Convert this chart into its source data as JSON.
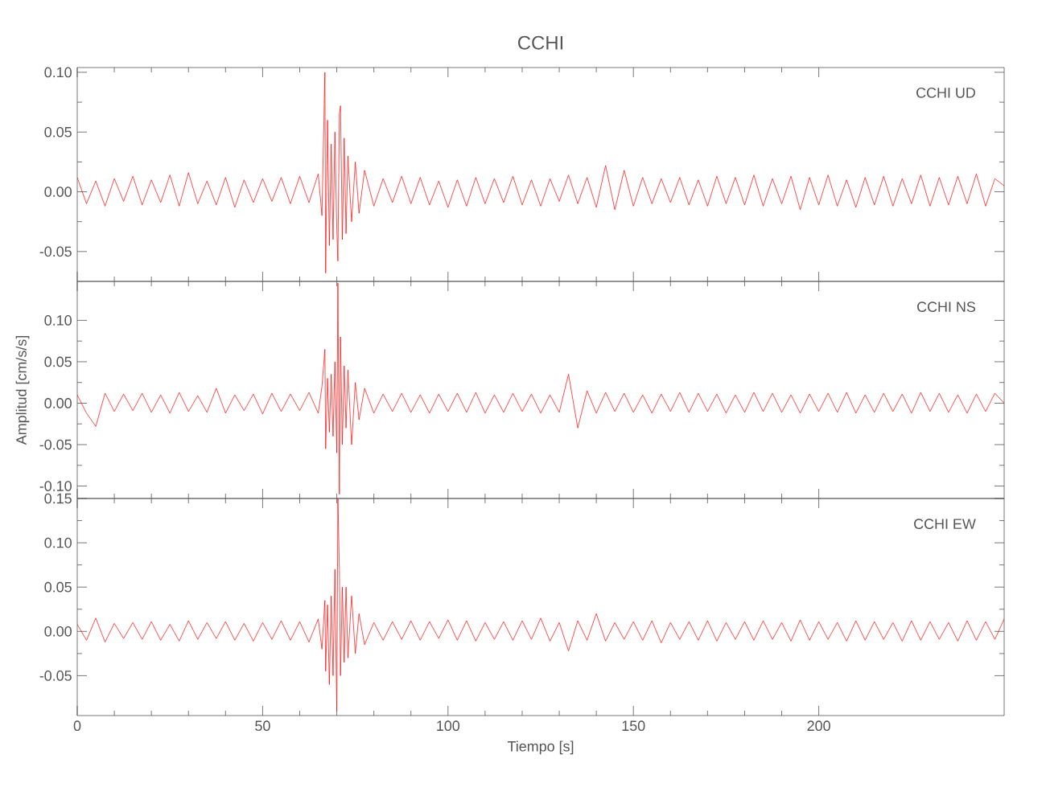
{
  "chart_data": [
    {
      "type": "line",
      "title": "CCHI",
      "annotations": [
        "CCHI   UD"
      ],
      "color": "#ff0000",
      "tick_labels": "y",
      "xlim": [
        0,
        250
      ],
      "ylim": [
        -0.075,
        0.104
      ],
      "xticks": [
        0,
        50,
        100,
        150,
        200
      ],
      "yticks": [
        {
          "value": -0.05,
          "label": "-0.05"
        },
        {
          "value": 0,
          "label": "0.00"
        },
        {
          "value": 0.05,
          "label": "0.05"
        },
        {
          "value": 0.1,
          "label": "0.10"
        }
      ],
      "x": [
        0,
        2.5,
        5,
        7.5,
        10,
        12.5,
        15,
        17.5,
        20,
        22.5,
        25,
        27.5,
        30,
        32.5,
        35,
        37.5,
        40,
        42.5,
        45,
        47.5,
        50,
        52.5,
        55,
        57.5,
        60,
        62.5,
        65,
        66,
        66.8,
        67,
        67.5,
        68,
        68.5,
        69,
        69.5,
        70,
        70.3,
        70.7,
        71,
        71.5,
        72,
        72.5,
        73,
        74,
        75,
        76,
        77.5,
        80,
        82.5,
        85,
        87.5,
        90,
        92.5,
        95,
        97.5,
        100,
        102.5,
        105,
        107.5,
        110,
        112.5,
        115,
        117.5,
        120,
        122.5,
        125,
        127.5,
        130,
        132.5,
        135,
        137.5,
        140,
        142.5,
        145,
        147.5,
        150,
        152.5,
        155,
        157.5,
        160,
        162.5,
        165,
        167.5,
        170,
        172.5,
        175,
        177.5,
        180,
        182.5,
        185,
        187.5,
        190,
        192.5,
        195,
        197.5,
        200,
        202.5,
        205,
        207.5,
        210,
        212.5,
        215,
        217.5,
        220,
        222.5,
        225,
        227.5,
        230,
        232.5,
        235,
        237.5,
        240,
        242.5,
        245,
        247.5,
        250
      ],
      "values": [
        0.012,
        -0.01,
        0.009,
        -0.012,
        0.011,
        -0.008,
        0.013,
        -0.011,
        0.01,
        -0.009,
        0.014,
        -0.012,
        0.016,
        -0.01,
        0.009,
        -0.011,
        0.012,
        -0.013,
        0.01,
        -0.009,
        0.011,
        -0.008,
        0.012,
        -0.01,
        0.013,
        -0.009,
        0.015,
        -0.02,
        0.1,
        -0.068,
        0.06,
        -0.045,
        0.04,
        -0.04,
        0.05,
        -0.03,
        -0.058,
        0.065,
        0.072,
        -0.04,
        0.045,
        -0.035,
        0.03,
        -0.025,
        0.025,
        -0.018,
        0.018,
        -0.012,
        0.011,
        -0.009,
        0.013,
        -0.01,
        0.012,
        -0.011,
        0.009,
        -0.013,
        0.01,
        -0.012,
        0.012,
        -0.01,
        0.011,
        -0.009,
        0.013,
        -0.011,
        0.01,
        -0.012,
        0.011,
        -0.008,
        0.014,
        -0.01,
        0.012,
        -0.013,
        0.022,
        -0.015,
        0.018,
        -0.012,
        0.012,
        -0.01,
        0.011,
        -0.009,
        0.012,
        -0.011,
        0.01,
        -0.012,
        0.013,
        -0.01,
        0.012,
        -0.011,
        0.014,
        -0.012,
        0.011,
        -0.01,
        0.013,
        -0.015,
        0.012,
        -0.011,
        0.014,
        -0.012,
        0.01,
        -0.013,
        0.012,
        -0.011,
        0.013,
        -0.012,
        0.011,
        -0.01,
        0.014,
        -0.012,
        0.012,
        -0.011,
        0.013,
        -0.01,
        0.015,
        -0.012,
        0.011,
        0.005
      ]
    },
    {
      "type": "line",
      "ylabel": "Amplitud [cm/s/s]",
      "annotations": [
        "CCHI   NS"
      ],
      "color": "#ff0000",
      "tick_labels": "y",
      "xlim": [
        0,
        250
      ],
      "ylim": [
        -0.115,
        0.147
      ],
      "xticks": [
        0,
        50,
        100,
        150,
        200
      ],
      "yticks": [
        {
          "value": -0.1,
          "label": "-0.10"
        },
        {
          "value": -0.05,
          "label": "-0.05"
        },
        {
          "value": 0,
          "label": "0.00"
        },
        {
          "value": 0.05,
          "label": "0.05"
        },
        {
          "value": 0.1,
          "label": "0.10"
        }
      ],
      "x": [
        0,
        2.5,
        5,
        7.5,
        10,
        12.5,
        15,
        17.5,
        20,
        22.5,
        25,
        27.5,
        30,
        32.5,
        35,
        37.5,
        40,
        42.5,
        45,
        47.5,
        50,
        52.5,
        55,
        57.5,
        60,
        62.5,
        65,
        66,
        66.8,
        67,
        67.5,
        68,
        68.5,
        69,
        69.5,
        70,
        70.3,
        70.7,
        71,
        71.5,
        72,
        72.5,
        73,
        74,
        75,
        76,
        77.5,
        80,
        82.5,
        85,
        87.5,
        90,
        92.5,
        95,
        97.5,
        100,
        102.5,
        105,
        107.5,
        110,
        112.5,
        115,
        117.5,
        120,
        122.5,
        125,
        127.5,
        130,
        132.5,
        135,
        137.5,
        140,
        142.5,
        145,
        147.5,
        150,
        152.5,
        155,
        157.5,
        160,
        162.5,
        165,
        167.5,
        170,
        172.5,
        175,
        177.5,
        180,
        182.5,
        185,
        187.5,
        190,
        192.5,
        195,
        197.5,
        200,
        202.5,
        205,
        207.5,
        210,
        212.5,
        215,
        217.5,
        220,
        222.5,
        225,
        227.5,
        230,
        232.5,
        235,
        237.5,
        240,
        242.5,
        245,
        247.5,
        250
      ],
      "values": [
        0.01,
        -0.012,
        -0.028,
        0.012,
        -0.01,
        0.011,
        -0.009,
        0.012,
        -0.011,
        0.01,
        -0.012,
        0.013,
        -0.01,
        0.009,
        -0.011,
        0.018,
        -0.012,
        0.01,
        -0.009,
        0.011,
        -0.013,
        0.012,
        -0.01,
        0.011,
        -0.009,
        0.013,
        -0.012,
        0.02,
        0.065,
        -0.055,
        0.03,
        -0.035,
        0.035,
        -0.04,
        0.05,
        -0.06,
        0.145,
        -0.11,
        0.08,
        -0.05,
        0.045,
        -0.03,
        0.04,
        -0.05,
        0.025,
        -0.02,
        0.018,
        -0.012,
        0.011,
        -0.01,
        0.012,
        -0.011,
        0.01,
        -0.012,
        0.011,
        -0.01,
        0.012,
        -0.011,
        0.013,
        -0.012,
        0.01,
        -0.011,
        0.012,
        -0.01,
        0.011,
        -0.012,
        0.01,
        -0.011,
        0.035,
        -0.03,
        0.015,
        -0.012,
        0.013,
        -0.01,
        0.012,
        -0.011,
        0.01,
        -0.012,
        0.011,
        -0.01,
        0.013,
        -0.011,
        0.012,
        -0.01,
        0.011,
        -0.012,
        0.01,
        -0.011,
        0.013,
        -0.01,
        0.012,
        -0.011,
        0.01,
        -0.012,
        0.011,
        -0.01,
        0.012,
        -0.011,
        0.013,
        -0.012,
        0.01,
        -0.011,
        0.012,
        -0.01,
        0.011,
        -0.012,
        0.013,
        -0.01,
        0.012,
        -0.011,
        0.01,
        -0.012,
        0.011,
        -0.01,
        0.012,
        0.0
      ]
    },
    {
      "type": "line",
      "xlabel": "Tiempo [s]",
      "annotations": [
        "CCHI   EW"
      ],
      "color": "#ff0000",
      "xlim": [
        0,
        250
      ],
      "ylim": [
        -0.095,
        0.15
      ],
      "xticks": [
        0,
        50,
        100,
        150,
        200
      ],
      "yticks": [
        {
          "value": -0.05,
          "label": "-0.05"
        },
        {
          "value": 0,
          "label": "0.00"
        },
        {
          "value": 0.05,
          "label": "0.05"
        },
        {
          "value": 0.1,
          "label": "0.10"
        },
        0.15
      ],
      "x": [
        0,
        2.5,
        5,
        7.5,
        10,
        12.5,
        15,
        17.5,
        20,
        22.5,
        25,
        27.5,
        30,
        32.5,
        35,
        37.5,
        40,
        42.5,
        45,
        47.5,
        50,
        52.5,
        55,
        57.5,
        60,
        62.5,
        65,
        66,
        66.8,
        67,
        67.5,
        68,
        68.5,
        69,
        69.5,
        70,
        70.3,
        70.7,
        71,
        71.5,
        72,
        72.5,
        73,
        74,
        75,
        76,
        77.5,
        80,
        82.5,
        85,
        87.5,
        90,
        92.5,
        95,
        97.5,
        100,
        102.5,
        105,
        107.5,
        110,
        112.5,
        115,
        117.5,
        120,
        122.5,
        125,
        127.5,
        130,
        132.5,
        135,
        137.5,
        140,
        142.5,
        145,
        147.5,
        150,
        152.5,
        155,
        157.5,
        160,
        162.5,
        165,
        167.5,
        170,
        172.5,
        175,
        177.5,
        180,
        182.5,
        185,
        187.5,
        190,
        192.5,
        195,
        197.5,
        200,
        202.5,
        205,
        207.5,
        210,
        212.5,
        215,
        217.5,
        220,
        222.5,
        225,
        227.5,
        230,
        232.5,
        235,
        237.5,
        240,
        242.5,
        245,
        247.5,
        250
      ],
      "values": [
        0.008,
        -0.01,
        0.015,
        -0.012,
        0.009,
        -0.008,
        0.01,
        -0.009,
        0.011,
        -0.01,
        0.008,
        -0.011,
        0.012,
        -0.009,
        0.01,
        -0.008,
        0.011,
        -0.01,
        0.009,
        -0.011,
        0.01,
        -0.009,
        0.012,
        -0.01,
        0.011,
        -0.012,
        0.014,
        -0.02,
        0.035,
        -0.045,
        0.03,
        -0.06,
        0.04,
        -0.05,
        0.07,
        -0.09,
        0.15,
        0.07,
        -0.05,
        0.05,
        -0.035,
        0.05,
        -0.03,
        0.04,
        -0.025,
        0.02,
        -0.015,
        0.01,
        -0.01,
        0.011,
        -0.009,
        0.012,
        -0.01,
        0.011,
        -0.008,
        0.013,
        -0.01,
        0.012,
        -0.011,
        0.01,
        -0.009,
        0.011,
        -0.01,
        0.012,
        -0.009,
        0.015,
        -0.011,
        0.01,
        -0.022,
        0.012,
        -0.01,
        0.02,
        -0.011,
        0.01,
        -0.009,
        0.011,
        -0.01,
        0.012,
        -0.013,
        0.01,
        -0.009,
        0.011,
        -0.01,
        0.012,
        -0.011,
        0.01,
        -0.009,
        0.011,
        -0.01,
        0.012,
        -0.009,
        0.01,
        -0.011,
        0.013,
        -0.01,
        0.011,
        -0.009,
        0.01,
        -0.011,
        0.012,
        -0.01,
        0.011,
        -0.009,
        0.01,
        -0.011,
        0.012,
        -0.01,
        0.011,
        -0.009,
        0.01,
        -0.011,
        0.012,
        -0.01,
        0.011,
        -0.009,
        0.014
      ]
    }
  ]
}
